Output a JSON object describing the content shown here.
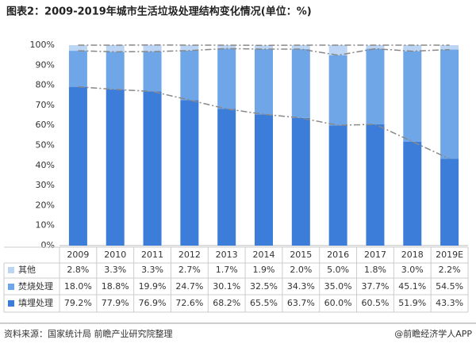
{
  "chart_data": {
    "type": "stacked-bar",
    "title": "图表2：2009-2019年城市生活垃圾处理结构变化情况(单位：%)",
    "categories": [
      "2009",
      "2010",
      "2011",
      "2012",
      "2013",
      "2014",
      "2015",
      "2016",
      "2017",
      "2018",
      "2019E"
    ],
    "series": [
      {
        "name": "其他",
        "color": "#bcd5f4",
        "values": [
          2.8,
          3.3,
          3.3,
          2.7,
          1.7,
          1.9,
          2.0,
          5.0,
          1.8,
          3.0,
          2.2
        ],
        "value_labels": [
          "2.8%",
          "3.3%",
          "3.3%",
          "2.7%",
          "1.7%",
          "1.9%",
          "2.0%",
          "5.0%",
          "1.8%",
          "3.0%",
          "2.2%"
        ]
      },
      {
        "name": "焚烧处理",
        "color": "#6ea6e8",
        "values": [
          18.0,
          18.8,
          19.9,
          24.7,
          30.1,
          32.5,
          34.3,
          35.0,
          37.7,
          45.1,
          54.5
        ],
        "value_labels": [
          "18.0%",
          "18.8%",
          "19.9%",
          "24.7%",
          "30.1%",
          "32.5%",
          "34.3%",
          "35.0%",
          "37.7%",
          "45.1%",
          "54.5%"
        ]
      },
      {
        "name": "填埋处理",
        "color": "#3c7dd9",
        "values": [
          79.2,
          77.9,
          76.9,
          72.6,
          68.2,
          65.5,
          63.7,
          60.0,
          60.5,
          51.9,
          43.3
        ],
        "value_labels": [
          "79.2%",
          "77.9%",
          "76.9%",
          "72.6%",
          "68.2%",
          "65.5%",
          "63.7%",
          "60.0%",
          "60.5%",
          "51.9%",
          "43.3%"
        ]
      }
    ],
    "ylim": [
      0,
      100
    ],
    "yticks": [
      {
        "value": 0,
        "label": "0%"
      },
      {
        "value": 10,
        "label": "10%"
      },
      {
        "value": 20,
        "label": "20%"
      },
      {
        "value": 30,
        "label": "30%"
      },
      {
        "value": 40,
        "label": "40%"
      },
      {
        "value": 50,
        "label": "50%"
      },
      {
        "value": 60,
        "label": "60%"
      },
      {
        "value": 70,
        "label": "70%"
      },
      {
        "value": 80,
        "label": "80%"
      },
      {
        "value": 90,
        "label": "90%"
      },
      {
        "value": 100,
        "label": "100%"
      }
    ],
    "source": "资料来源：国家统计局 前瞻产业研究院整理",
    "credit": "@前瞻经济学人APP"
  }
}
